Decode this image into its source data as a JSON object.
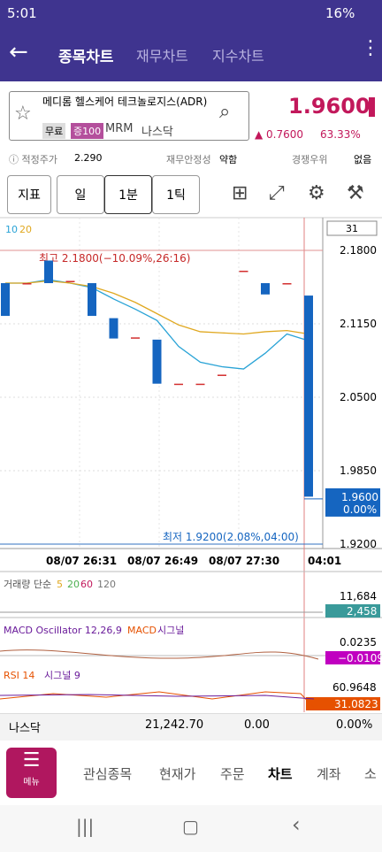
{
  "status": {
    "time": "5:01",
    "battery": "16%"
  },
  "tabs": [
    "종목차트",
    "재무차트",
    "지수차트"
  ],
  "stock": {
    "name": "메디롬 헬스케어 테크놀로지스(ADR)",
    "tags": [
      "무료",
      "증100"
    ],
    "code": "MRM",
    "market": "나스닥",
    "price": "1.9600",
    "change": "0.7600",
    "change_pct": "63.33%"
  },
  "info": [
    {
      "label": "적정주가",
      "value": "2.290"
    },
    {
      "label": "재무안정성",
      "value": "약함"
    },
    {
      "label": "경쟁우위",
      "value": "없음"
    }
  ],
  "toolbar": [
    "지표",
    "일",
    "1분",
    "1틱"
  ],
  "chart": {
    "ma_labels": [
      "10",
      "20"
    ],
    "count": "31",
    "high_note": "최고 2.1800(−10.09%,26:16)",
    "low_note": "최저 1.9200(2.08%,04:00)",
    "ylim": [
      1.92,
      2.18
    ],
    "yticks": [
      {
        "value": 2.18,
        "label": "2.1800"
      },
      {
        "value": 2.115,
        "label": "2.1150"
      },
      {
        "value": 2.05,
        "label": "2.0500"
      },
      {
        "value": 1.985,
        "label": "1.9850"
      },
      {
        "value": 1.92,
        "label": "1.9200"
      }
    ],
    "current": {
      "value": 1.96,
      "label": "1.9600",
      "pct": "0.00%"
    },
    "xlabels": [
      "08/07 26:31",
      "08/07 26:49",
      "08/07 27:30",
      "04:01"
    ],
    "up_color": "#d32f2f",
    "down_color": "#1565c0",
    "candles": [
      {
        "open": 2.151,
        "close": 2.122
      },
      {
        "open": 2.151,
        "close": 2.151
      },
      {
        "open": 2.171,
        "close": 2.151
      },
      {
        "open": 2.153,
        "close": 2.153
      },
      {
        "open": 2.151,
        "close": 2.122
      },
      {
        "open": 2.12,
        "close": 2.102
      },
      {
        "open": 2.103,
        "close": 2.103
      },
      {
        "open": 2.101,
        "close": 2.062
      },
      {
        "open": 2.062,
        "close": 2.062
      },
      {
        "open": 2.062,
        "close": 2.062
      },
      {
        "open": 2.07,
        "close": 2.07
      },
      {
        "open": 2.162,
        "close": 2.162
      },
      {
        "open": 2.151,
        "close": 2.141
      },
      {
        "open": 2.151,
        "close": 2.151
      },
      {
        "open": 2.14,
        "close": 1.962
      }
    ],
    "ma10": {
      "color": "#29a3d6",
      "values": [
        2.151,
        2.151,
        2.154,
        2.151,
        2.147,
        2.137,
        2.128,
        2.118,
        2.095,
        2.081,
        2.077,
        2.075,
        2.089,
        2.106,
        2.1
      ]
    },
    "ma20": {
      "color": "#e0a820",
      "values": [
        2.151,
        2.151,
        2.153,
        2.151,
        2.148,
        2.142,
        2.134,
        2.124,
        2.114,
        2.108,
        2.107,
        2.106,
        2.108,
        2.109,
        2.106
      ]
    }
  },
  "volume": {
    "title": "거래량 단순",
    "periods": [
      "5",
      "20",
      "60",
      "120"
    ],
    "max": "11,684",
    "current": "2,458"
  },
  "macd": {
    "title": "MACD Oscillator 12,26,9",
    "line": "MACD",
    "signal": "시그널",
    "max": "0.0235",
    "current": "−0.0109"
  },
  "rsi": {
    "title": "RSI 14",
    "signal": "시그널 9",
    "max": "60.9648",
    "current": "31.0823"
  },
  "ticker": {
    "name": "나스닥",
    "value": "21,242.70",
    "change": "0.00",
    "pct": "0.00%"
  },
  "nav": {
    "menu": "메뉴",
    "items": [
      "관심종목",
      "현재가",
      "주문",
      "차트",
      "계좌",
      "소"
    ]
  }
}
